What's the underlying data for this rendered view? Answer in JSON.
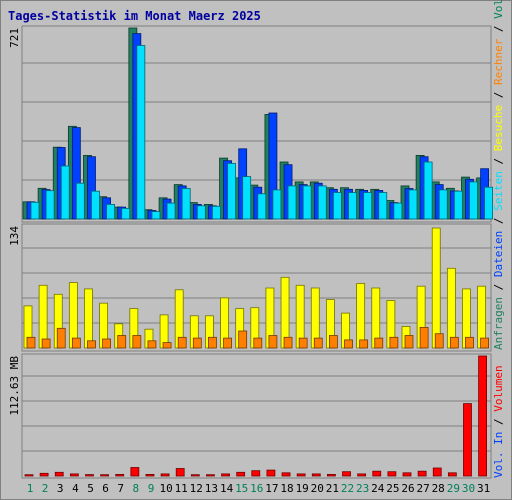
{
  "title": "Tages-Statistik im Monat Maerz 2025",
  "colors": {
    "background": "#c0c0c0",
    "title": "#0000a0",
    "anfragen": "#208060",
    "dateien": "#0040ff",
    "seiten": "#00e0ff",
    "besuche": "#ffff00",
    "rechner": "#ff8000",
    "volumen": "#ff0000",
    "weekend_label": "#00805c"
  },
  "chart_data": [
    {
      "type": "bar",
      "panel": "hits",
      "ylabel": "721",
      "ymax": 721,
      "categories": [
        "1",
        "2",
        "3",
        "4",
        "5",
        "6",
        "7",
        "8",
        "9",
        "10",
        "11",
        "12",
        "13",
        "14",
        "15",
        "16",
        "17",
        "18",
        "19",
        "20",
        "21",
        "22",
        "23",
        "24",
        "25",
        "26",
        "27",
        "28",
        "29",
        "30",
        "31"
      ],
      "series": [
        {
          "name": "Anfragen",
          "color": "#208060",
          "values": [
            65,
            116,
            271,
            350,
            240,
            84,
            45,
            721,
            35,
            80,
            130,
            62,
            55,
            230,
            155,
            128,
            395,
            215,
            140,
            140,
            118,
            118,
            112,
            112,
            70,
            125,
            240,
            140,
            116,
            158,
            155
          ]
        },
        {
          "name": "Dateien",
          "color": "#0040ff",
          "values": [
            65,
            111,
            270,
            345,
            235,
            80,
            45,
            700,
            32,
            75,
            125,
            55,
            50,
            220,
            265,
            120,
            400,
            205,
            130,
            135,
            112,
            112,
            108,
            108,
            62,
            115,
            235,
            130,
            106,
            150,
            190
          ]
        },
        {
          "name": "Seiten",
          "color": "#00e0ff",
          "values": [
            63,
            107,
            200,
            135,
            105,
            55,
            40,
            655,
            28,
            60,
            115,
            50,
            48,
            210,
            160,
            95,
            110,
            125,
            125,
            125,
            100,
            100,
            100,
            100,
            60,
            110,
            215,
            110,
            105,
            140,
            120
          ]
        }
      ],
      "grid": true
    },
    {
      "type": "bar",
      "panel": "visits",
      "ylabel": "134",
      "ymax": 134,
      "categories": [
        "1",
        "2",
        "3",
        "4",
        "5",
        "6",
        "7",
        "8",
        "9",
        "10",
        "11",
        "12",
        "13",
        "14",
        "15",
        "16",
        "17",
        "18",
        "19",
        "20",
        "21",
        "22",
        "23",
        "24",
        "25",
        "26",
        "27",
        "28",
        "29",
        "30",
        "31"
      ],
      "series": [
        {
          "name": "Besuche",
          "color": "#ffff00",
          "values": [
            47,
            70,
            60,
            73,
            66,
            50,
            27,
            44,
            21,
            37,
            65,
            36,
            36,
            56,
            44,
            45,
            67,
            79,
            70,
            67,
            54,
            39,
            72,
            67,
            53,
            24,
            69,
            134,
            89,
            66,
            69
          ]
        },
        {
          "name": "Rechner",
          "color": "#ff8000",
          "values": [
            12,
            10,
            22,
            11,
            8,
            10,
            14,
            14,
            8,
            6,
            12,
            11,
            12,
            11,
            19,
            11,
            14,
            12,
            11,
            11,
            14,
            9,
            9,
            11,
            12,
            14,
            23,
            16,
            12,
            12,
            11
          ]
        }
      ],
      "grid": true
    },
    {
      "type": "bar",
      "panel": "volume",
      "ylabel": "112.63 MB",
      "ymax": 112.63,
      "unit": "MB",
      "categories": [
        "1",
        "2",
        "3",
        "4",
        "5",
        "6",
        "7",
        "8",
        "9",
        "10",
        "11",
        "12",
        "13",
        "14",
        "15",
        "16",
        "17",
        "18",
        "19",
        "20",
        "21",
        "22",
        "23",
        "24",
        "25",
        "26",
        "27",
        "28",
        "29",
        "30",
        "31"
      ],
      "series": [
        {
          "name": "Volumen",
          "color": "#ff0000",
          "values": [
            1.2,
            2.5,
            3.5,
            2.0,
            1.3,
            1.2,
            1.5,
            8.0,
            1.5,
            2.0,
            7.0,
            1.2,
            1.2,
            2.0,
            3.5,
            5.0,
            5.5,
            3.0,
            2.0,
            2.0,
            1.5,
            4.0,
            2.0,
            4.5,
            4.0,
            3.0,
            4.5,
            7.5,
            3.0,
            68,
            112.63
          ]
        }
      ],
      "grid": true
    }
  ],
  "day_labels": [
    {
      "label": "1",
      "weekend": true
    },
    {
      "label": "2",
      "weekend": true
    },
    {
      "label": "3",
      "weekend": false
    },
    {
      "label": "4",
      "weekend": false
    },
    {
      "label": "5",
      "weekend": false
    },
    {
      "label": "6",
      "weekend": false
    },
    {
      "label": "7",
      "weekend": false
    },
    {
      "label": "8",
      "weekend": true
    },
    {
      "label": "9",
      "weekend": true
    },
    {
      "label": "10",
      "weekend": false
    },
    {
      "label": "11",
      "weekend": false
    },
    {
      "label": "12",
      "weekend": false
    },
    {
      "label": "13",
      "weekend": false
    },
    {
      "label": "14",
      "weekend": false
    },
    {
      "label": "15",
      "weekend": true
    },
    {
      "label": "16",
      "weekend": true
    },
    {
      "label": "17",
      "weekend": false
    },
    {
      "label": "18",
      "weekend": false
    },
    {
      "label": "19",
      "weekend": false
    },
    {
      "label": "20",
      "weekend": false
    },
    {
      "label": "21",
      "weekend": false
    },
    {
      "label": "22",
      "weekend": true
    },
    {
      "label": "23",
      "weekend": true
    },
    {
      "label": "24",
      "weekend": false
    },
    {
      "label": "25",
      "weekend": false
    },
    {
      "label": "26",
      "weekend": false
    },
    {
      "label": "27",
      "weekend": false
    },
    {
      "label": "28",
      "weekend": false
    },
    {
      "label": "29",
      "weekend": true
    },
    {
      "label": "30",
      "weekend": true
    },
    {
      "label": "31",
      "weekend": false
    }
  ],
  "legend": {
    "top": [
      {
        "text": "Anfragen",
        "color": "#208060"
      },
      {
        "text": "Dateien",
        "color": "#0040ff"
      },
      {
        "text": "Seiten",
        "color": "#00e0ff"
      },
      {
        "text": "Besuche",
        "color": "#ffff00"
      },
      {
        "text": "Rechner",
        "color": "#ff8000"
      },
      {
        "text": "Vol. Out",
        "color": "#00805c"
      }
    ],
    "bottom": [
      {
        "text": "Vol. In",
        "color": "#0040ff"
      },
      {
        "text": "Volumen",
        "color": "#ff0000"
      }
    ]
  }
}
